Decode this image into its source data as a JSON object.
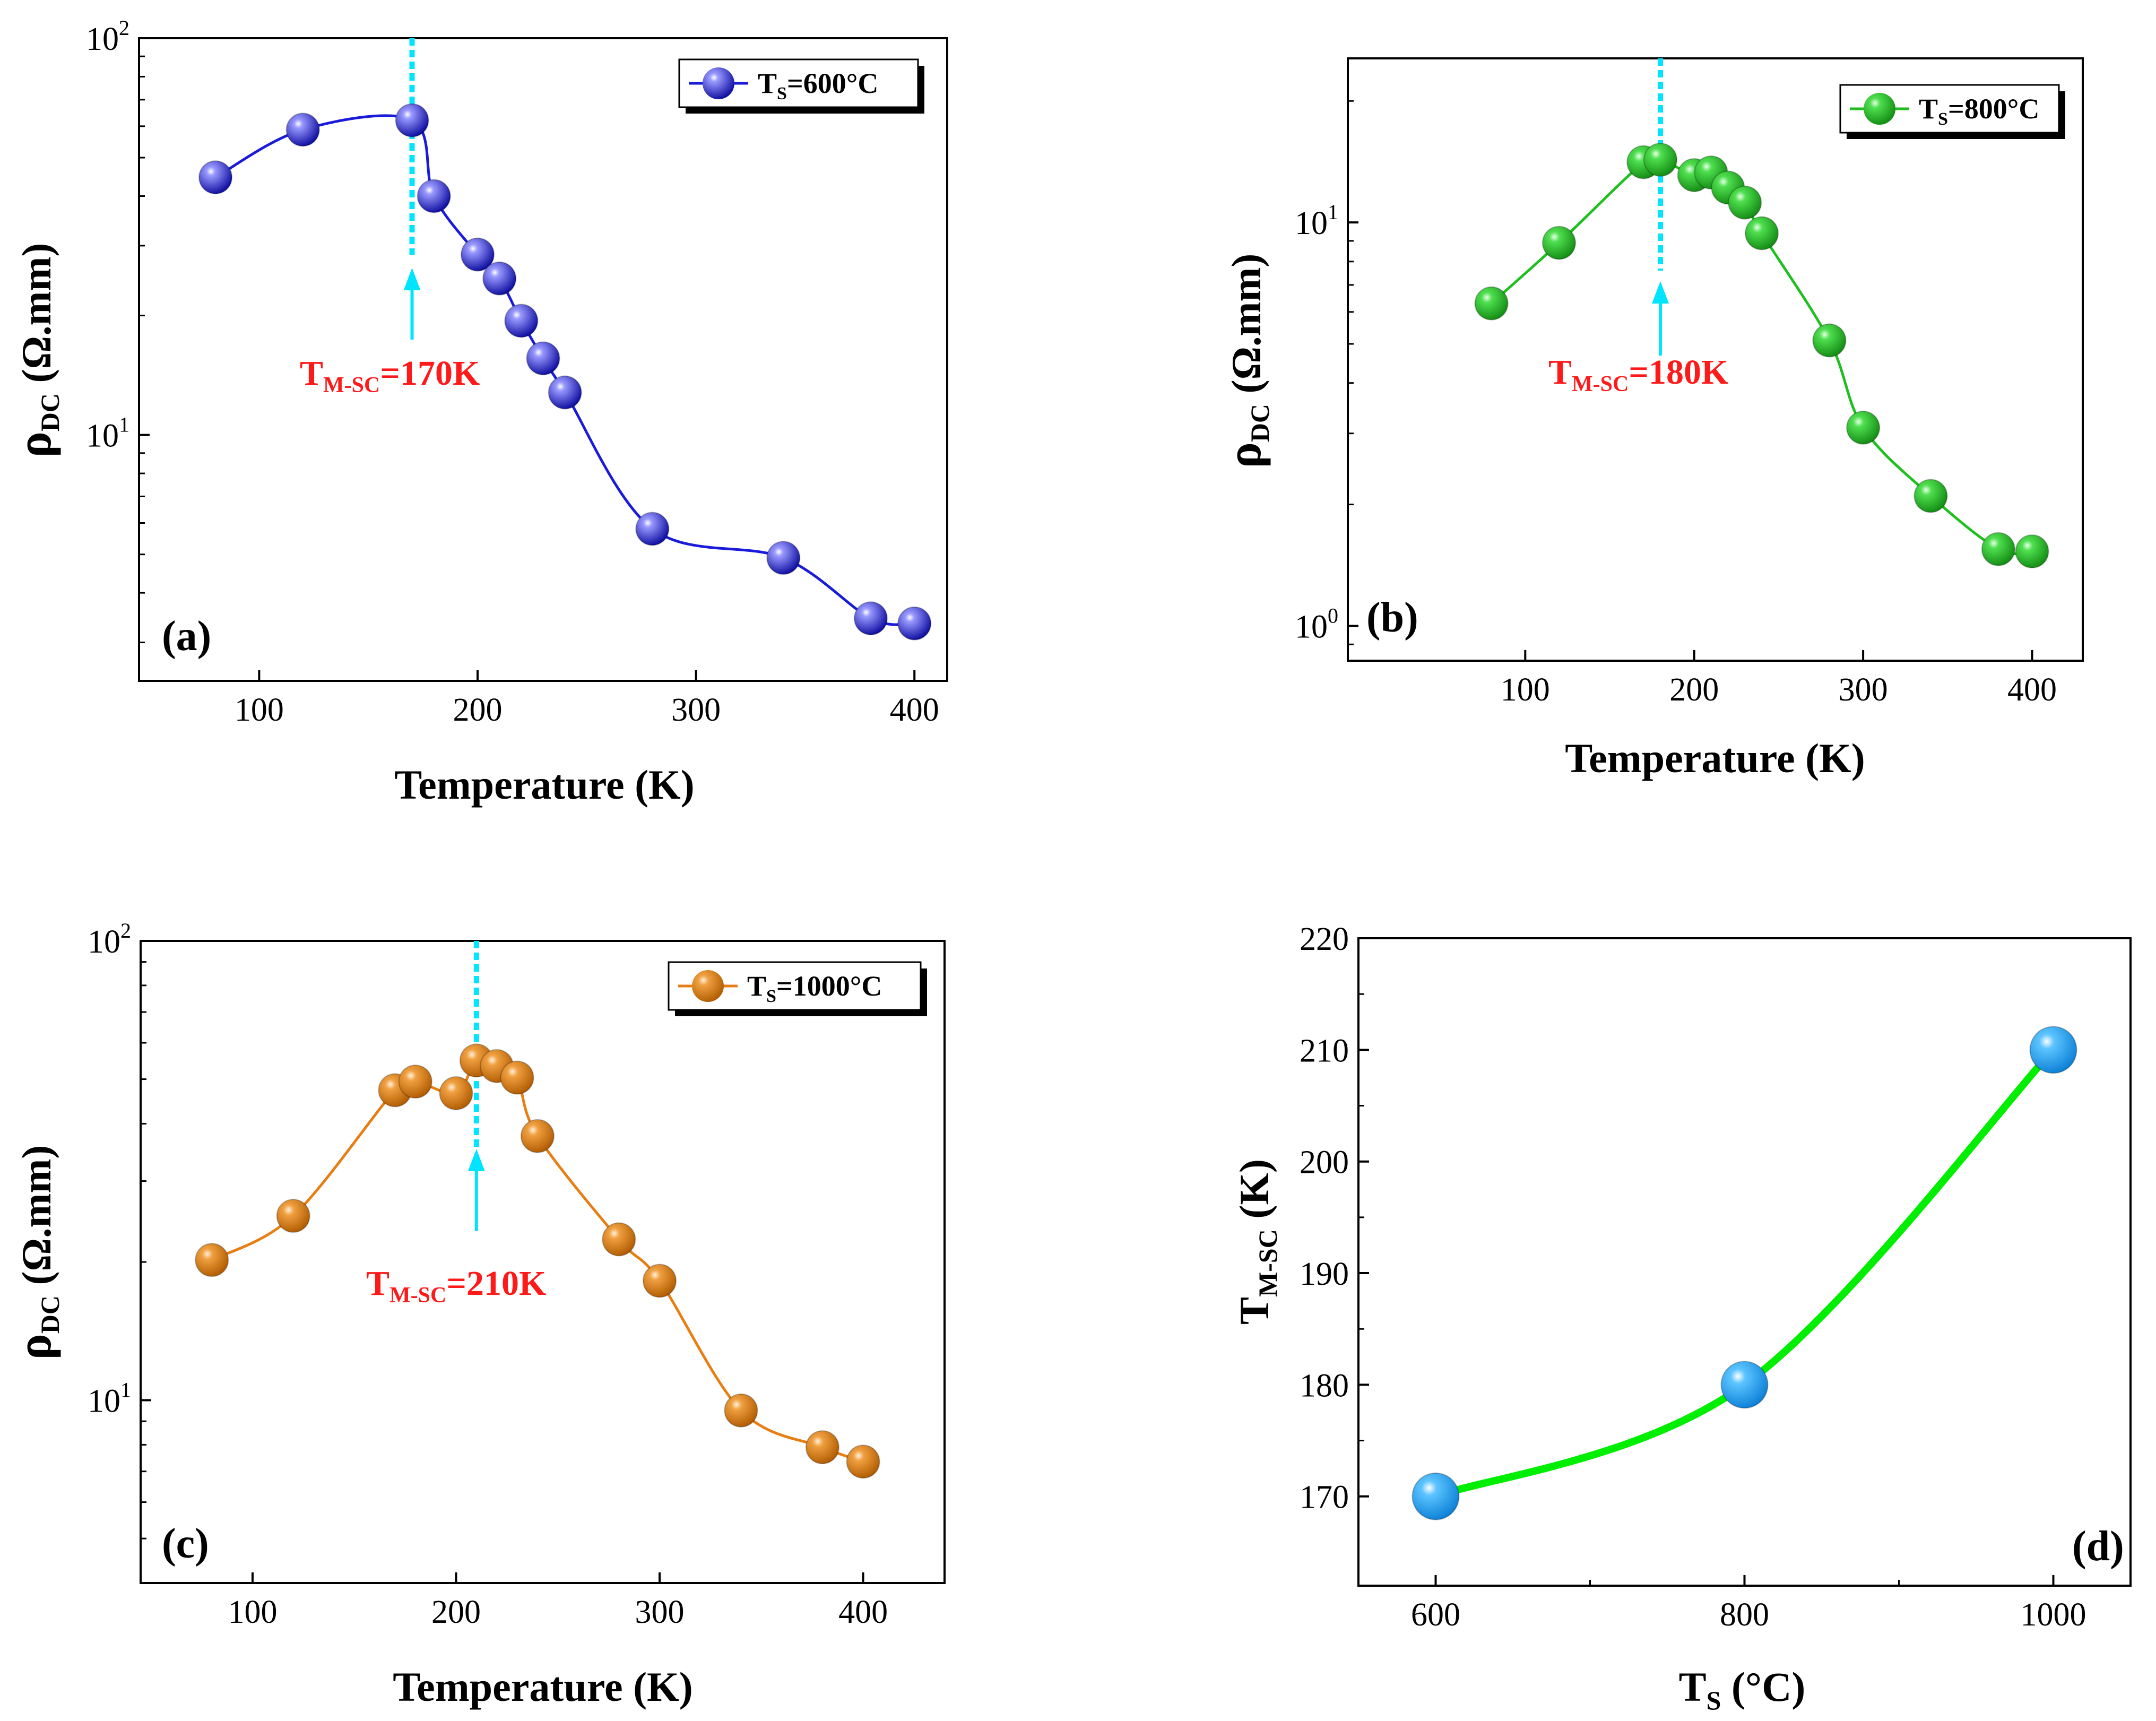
{
  "chart_data": [
    {
      "type": "line",
      "panel_label": "(a)",
      "xlabel": "Temperature (K)",
      "ylabel": {
        "main": "ρ",
        "sub": "DC",
        "rest": " (Ω.mm)"
      },
      "yscale": "log",
      "xlim": [
        45,
        415
      ],
      "ylim": [
        2.4,
        100
      ],
      "xticks": [
        100,
        200,
        300,
        400
      ],
      "yticks": [
        {
          "base": "10",
          "exp": "1",
          "value": 10
        },
        {
          "base": "10",
          "exp": "2",
          "value": 100
        }
      ],
      "color": "#1a1adb",
      "highlight": "#9999ff",
      "legend": {
        "main": "T",
        "sub": "S",
        "rest": "=600°C",
        "position": "top-right"
      },
      "series": [
        {
          "name": "TS=600°C",
          "x": [
            80,
            120,
            170,
            180,
            200,
            210,
            220,
            230,
            240,
            280,
            340,
            380,
            400
          ],
          "y": [
            44.6,
            58.8,
            62.1,
            40.0,
            28.5,
            24.8,
            19.4,
            15.6,
            12.8,
            5.8,
            4.9,
            3.45,
            3.35
          ]
        }
      ],
      "annotation": {
        "main": "T",
        "sub": "M-SC",
        "rest": "=170K",
        "x": 170,
        "color": "#ff1a1a",
        "marker_color": "#00e5ff"
      }
    },
    {
      "type": "line",
      "panel_label": "(b)",
      "xlabel": "Temperature (K)",
      "ylabel": {
        "main": "ρ",
        "sub": "DC",
        "rest": " (Ω.mm)"
      },
      "yscale": "log",
      "xlim": [
        -5,
        430
      ],
      "ylim": [
        0.82,
        25.5
      ],
      "xticks": [
        100,
        200,
        300,
        400
      ],
      "yticks": [
        {
          "base": "10",
          "exp": "0",
          "value": 1
        },
        {
          "base": "10",
          "exp": "1",
          "value": 10
        }
      ],
      "color": "#1fbf1f",
      "highlight": "#99ff99",
      "legend": {
        "main": "T",
        "sub": "S",
        "rest": "=800°C",
        "position": "top-right"
      },
      "series": [
        {
          "name": "TS=800°C",
          "x": [
            80,
            120,
            170,
            180,
            200,
            210,
            220,
            230,
            240,
            280,
            300,
            340,
            380,
            400
          ],
          "y": [
            6.3,
            8.9,
            14.1,
            14.3,
            13.1,
            13.3,
            12.2,
            11.2,
            9.4,
            5.1,
            3.1,
            2.1,
            1.55,
            1.53
          ]
        }
      ],
      "annotation": {
        "main": "T",
        "sub": "M-SC",
        "rest": "=180K",
        "x": 180,
        "color": "#ff1a1a",
        "marker_color": "#00e5ff"
      }
    },
    {
      "type": "line",
      "panel_label": "(c)",
      "xlabel": "Temperature (K)",
      "ylabel": {
        "main": "ρ",
        "sub": "DC",
        "rest": " (Ω.mm)"
      },
      "yscale": "log",
      "xlim": [
        45,
        440
      ],
      "ylim": [
        4,
        100
      ],
      "xticks": [
        100,
        200,
        300,
        400
      ],
      "yticks": [
        {
          "base": "10",
          "exp": "1",
          "value": 10
        },
        {
          "base": "10",
          "exp": "2",
          "value": 100
        }
      ],
      "color": "#e87d12",
      "highlight": "#ffcc80",
      "legend": {
        "main": "T",
        "sub": "S",
        "rest": "=1000°C",
        "position": "top-right"
      },
      "series": [
        {
          "name": "TS=1000°C",
          "x": [
            80,
            120,
            170,
            180,
            200,
            210,
            220,
            230,
            240,
            280,
            300,
            340,
            380,
            400
          ],
          "y": [
            20.2,
            25.2,
            47.3,
            49.4,
            46.6,
            54.9,
            53.4,
            50.4,
            37.6,
            22.4,
            18.2,
            9.5,
            7.9,
            7.35
          ]
        }
      ],
      "annotation": {
        "main": "T",
        "sub": "M-SC",
        "rest": "=210K",
        "x": 210,
        "color": "#ff1a1a",
        "marker_color": "#00e5ff"
      }
    },
    {
      "type": "line",
      "panel_label": "(d)",
      "xlabel": {
        "main": "T",
        "sub": "S",
        "rest": " (°C)"
      },
      "ylabel": {
        "main": "T",
        "sub": "M-SC",
        "rest": " (K)"
      },
      "yscale": "linear",
      "xlim": [
        550,
        1050
      ],
      "ylim": [
        162,
        220
      ],
      "xticks": [
        600,
        800,
        1000
      ],
      "yticks": [
        170,
        180,
        190,
        200,
        210,
        220
      ],
      "color": "#00ee00",
      "marker_color": "#1aa3ff",
      "series": [
        {
          "name": "TM-SC",
          "x": [
            600,
            800,
            1000
          ],
          "y": [
            170,
            180,
            210
          ]
        }
      ]
    }
  ]
}
